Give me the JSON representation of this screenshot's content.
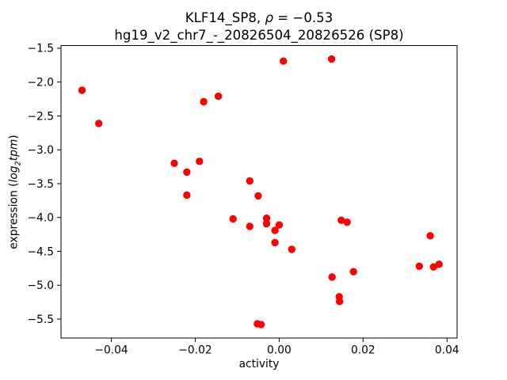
{
  "title": {
    "line1_pre": "KLF14_SP8, ",
    "line1_rho": "ρ",
    "line1_rest": " = −0.53",
    "line2": "hg19_v2_chr7_-_20826504_20826526 (SP8)"
  },
  "axes": {
    "xlabel": "activity",
    "ylabel_pre": "expression (",
    "ylabel_log": "log",
    "ylabel_sub": "2",
    "ylabel_tpm": "tpm",
    "ylabel_post": ")"
  },
  "chart_data": {
    "type": "scatter",
    "title": "KLF14_SP8, ρ = −0.53\nhg19_v2_chr7_-_20826504_20826526 (SP8)",
    "xlabel": "activity",
    "ylabel": "expression (log2 tpm)",
    "legend": "none",
    "grid": false,
    "marker": "circle",
    "marker_color": "#ff0000",
    "xlim": [
      -0.052,
      0.0424
    ],
    "ylim": [
      -5.78,
      -1.46
    ],
    "x_ticks": [
      -0.04,
      -0.02,
      0.0,
      0.02,
      0.04
    ],
    "x_tick_labels": [
      "−0.04",
      "−0.02",
      "0.00",
      "0.02",
      "0.04"
    ],
    "y_ticks": [
      -1.5,
      -2.0,
      -2.5,
      -3.0,
      -3.5,
      -4.0,
      -4.5,
      -5.0,
      -5.5
    ],
    "y_tick_labels": [
      "−1.5",
      "−2.0",
      "−2.5",
      "−3.0",
      "−3.5",
      "−4.0",
      "−4.5",
      "−5.0",
      "−5.5"
    ],
    "points": [
      [
        -0.047,
        -2.12
      ],
      [
        -0.043,
        -2.61
      ],
      [
        0.001,
        -1.69
      ],
      [
        0.0125,
        -1.66
      ],
      [
        -0.018,
        -2.29
      ],
      [
        -0.0145,
        -2.21
      ],
      [
        -0.025,
        -3.2
      ],
      [
        -0.022,
        -3.33
      ],
      [
        -0.019,
        -3.17
      ],
      [
        -0.007,
        -3.46
      ],
      [
        -0.022,
        -3.67
      ],
      [
        -0.005,
        -3.68
      ],
      [
        -0.011,
        -4.02
      ],
      [
        -0.007,
        -4.13
      ],
      [
        -0.003,
        -4.01
      ],
      [
        -0.003,
        -4.09
      ],
      [
        0.0,
        -4.11
      ],
      [
        -0.001,
        -4.19
      ],
      [
        -0.001,
        -4.37
      ],
      [
        0.003,
        -4.47
      ],
      [
        0.0148,
        -4.04
      ],
      [
        0.0162,
        -4.07
      ],
      [
        0.036,
        -4.27
      ],
      [
        0.0334,
        -4.72
      ],
      [
        0.0368,
        -4.73
      ],
      [
        0.0381,
        -4.69
      ],
      [
        0.0177,
        -4.8
      ],
      [
        0.0126,
        -4.88
      ],
      [
        0.0143,
        -5.17
      ],
      [
        0.0144,
        -5.24
      ],
      [
        -0.0052,
        -5.57
      ],
      [
        -0.0043,
        -5.58
      ]
    ]
  }
}
